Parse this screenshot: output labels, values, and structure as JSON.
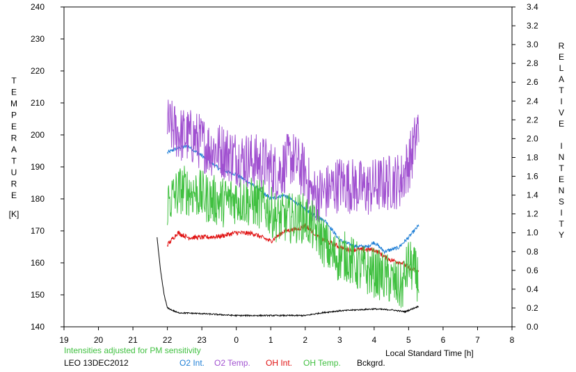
{
  "chart_data": {
    "type": "line",
    "title": "",
    "xlabel": "Local Standard Time [h]",
    "x_ticks": [
      "19",
      "20",
      "21",
      "22",
      "23",
      "0",
      "1",
      "2",
      "3",
      "4",
      "5",
      "6",
      "7",
      "8"
    ],
    "xlim": [
      19,
      32
    ],
    "y_left": {
      "label_letters": [
        "T",
        "E",
        "M",
        "P",
        "E",
        "R",
        "A",
        "T",
        "U",
        "R",
        "E"
      ],
      "unit": "[K]",
      "ticks": [
        "140",
        "150",
        "160",
        "170",
        "180",
        "190",
        "200",
        "210",
        "220",
        "230",
        "240"
      ],
      "lim": [
        140,
        240
      ]
    },
    "y_right": {
      "label_word1_letters": [
        "R",
        "E",
        "L",
        "A",
        "T",
        "I",
        "V",
        "E"
      ],
      "label_word2_letters": [
        "I",
        "N",
        "T",
        "E",
        "N",
        "S",
        "I",
        "T",
        "Y"
      ],
      "ticks": [
        "0.0",
        "0.2",
        "0.4",
        "0.6",
        "0.8",
        "1.0",
        "1.2",
        "1.4",
        "1.6",
        "1.8",
        "2.0",
        "2.2",
        "2.4",
        "2.6",
        "2.8",
        "3.0",
        "3.2",
        "3.4"
      ],
      "lim": [
        0.0,
        3.4
      ]
    },
    "grid": false,
    "note": "Intensities adjusted for PM sensitivity",
    "station": "LEO 13DEC2012",
    "series": [
      {
        "name": "O2 Int.",
        "color": "#1f7fd6",
        "axis": "right",
        "noise": 0.02,
        "x": [
          22.0,
          22.3,
          22.6,
          23.0,
          23.5,
          24.0,
          24.5,
          25.0,
          25.4,
          25.8,
          26.2,
          26.6,
          27.0,
          27.4,
          27.8,
          28.0,
          28.3,
          28.7,
          29.0,
          29.3
        ],
        "y": [
          1.85,
          1.9,
          1.92,
          1.82,
          1.68,
          1.62,
          1.5,
          1.36,
          1.4,
          1.3,
          1.2,
          1.12,
          0.92,
          0.86,
          0.85,
          0.9,
          0.8,
          0.84,
          0.95,
          1.08
        ]
      },
      {
        "name": "O2 Temp.",
        "color": "#a050d0",
        "axis": "left",
        "noise": 9,
        "x": [
          22.0,
          22.4,
          22.8,
          23.2,
          23.6,
          24.0,
          24.4,
          24.8,
          25.2,
          25.6,
          26.0,
          26.2,
          26.6,
          27.0,
          27.4,
          27.8,
          28.0,
          28.4,
          28.8,
          29.1,
          29.3
        ],
        "y": [
          203,
          200,
          199,
          196,
          195,
          193,
          192,
          191,
          188,
          193,
          188,
          181,
          182,
          185,
          184,
          183,
          184,
          185,
          186,
          194,
          203
        ]
      },
      {
        "name": "OH Int.",
        "color": "#e01010",
        "axis": "right",
        "noise": 0.025,
        "x": [
          22.0,
          22.3,
          22.6,
          23.0,
          23.5,
          24.0,
          24.5,
          25.0,
          25.4,
          25.8,
          26.0,
          26.4,
          26.8,
          27.2,
          27.6,
          28.0,
          28.4,
          28.8,
          29.0,
          29.3
        ],
        "y": [
          0.87,
          1.0,
          0.95,
          0.95,
          0.96,
          1.0,
          0.99,
          0.91,
          1.02,
          1.04,
          1.08,
          0.95,
          0.88,
          0.82,
          0.82,
          0.82,
          0.72,
          0.68,
          0.63,
          0.58
        ]
      },
      {
        "name": "OH Temp.",
        "color": "#40c040",
        "axis": "left",
        "noise": 8,
        "x": [
          22.0,
          22.4,
          22.8,
          23.2,
          23.6,
          24.0,
          24.4,
          24.8,
          25.2,
          25.6,
          26.0,
          26.4,
          26.8,
          27.2,
          27.6,
          28.0,
          28.4,
          28.8,
          29.0,
          29.3
        ],
        "y": [
          179,
          183,
          182,
          180,
          179,
          180,
          179,
          178,
          174,
          174,
          174,
          169,
          162,
          162,
          158,
          157,
          155,
          152,
          160,
          155
        ]
      },
      {
        "name": "Bckgrd.",
        "color": "#000000",
        "axis": "right",
        "noise": 0.007,
        "x": [
          21.7,
          21.8,
          21.9,
          22.0,
          22.3,
          23.0,
          24.0,
          25.0,
          26.0,
          26.5,
          27.0,
          27.5,
          28.0,
          28.5,
          28.9,
          29.3
        ],
        "y": [
          0.95,
          0.6,
          0.35,
          0.2,
          0.15,
          0.14,
          0.12,
          0.12,
          0.12,
          0.15,
          0.17,
          0.18,
          0.19,
          0.18,
          0.16,
          0.22
        ]
      }
    ]
  }
}
